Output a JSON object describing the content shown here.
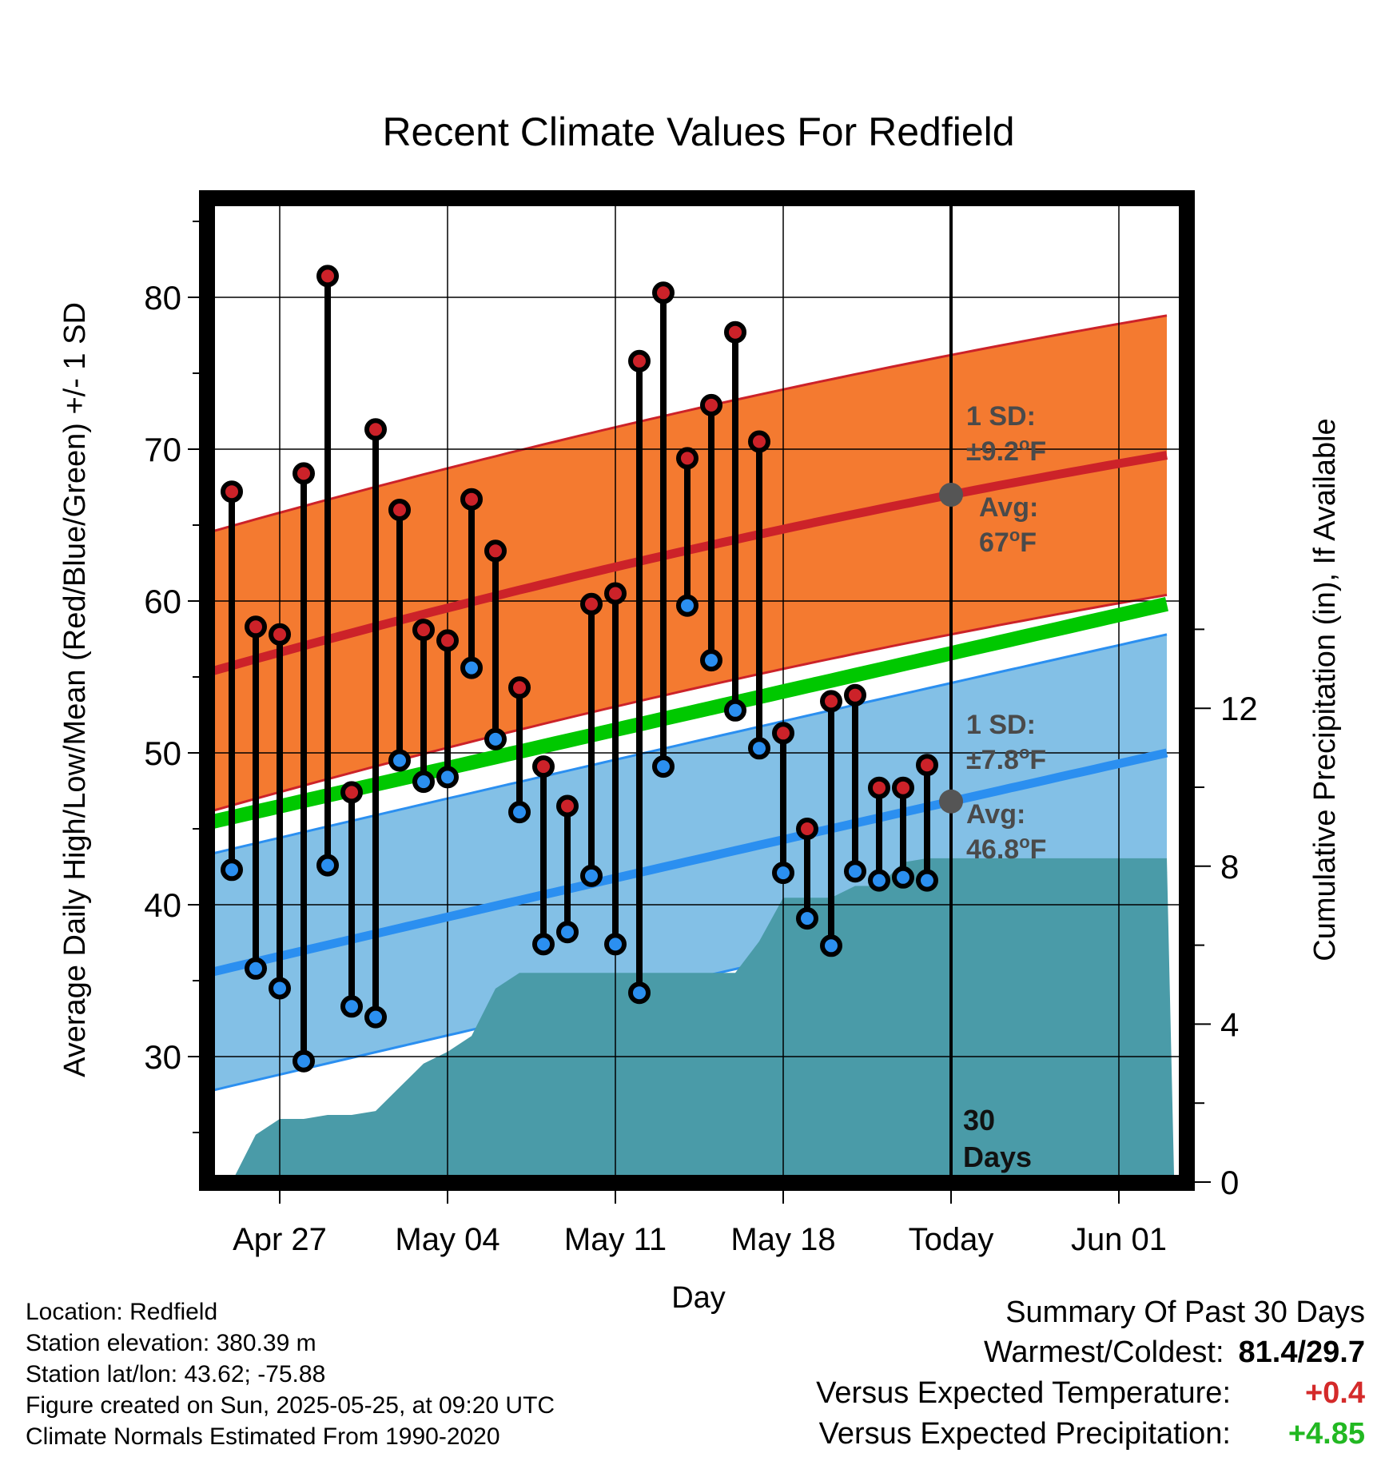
{
  "chart_data": {
    "type": "range-bar",
    "title": "Recent Climate Values For Redfield",
    "xlabel": "Day",
    "ylabel": "Average Daily High/Low/Mean (Red/Blue/Green) +/- 1 SD",
    "y2label": "Cumulative Precipitation (in), If Available",
    "ylim": [
      20,
      86
    ],
    "y2lim": [
      0,
      20
    ],
    "yticks": [
      30,
      40,
      50,
      60,
      70,
      80
    ],
    "y2ticks": [
      0,
      4,
      8,
      12
    ],
    "xticks": [
      {
        "day": 3,
        "label": "Apr 27"
      },
      {
        "day": 10,
        "label": "May 04"
      },
      {
        "day": 17,
        "label": "May 11"
      },
      {
        "day": 24,
        "label": "May 18"
      },
      {
        "day": 31,
        "label": "Today"
      },
      {
        "day": 38,
        "label": "Jun 01"
      }
    ],
    "days": [
      1,
      2,
      3,
      4,
      5,
      6,
      7,
      8,
      9,
      10,
      11,
      12,
      13,
      14,
      15,
      16,
      17,
      18,
      19,
      20,
      21,
      22,
      23,
      24,
      25,
      26,
      27,
      28,
      29,
      30
    ],
    "highs": [
      67.2,
      58.3,
      57.8,
      68.4,
      81.4,
      47.4,
      71.3,
      66.0,
      58.1,
      57.4,
      66.7,
      63.3,
      54.3,
      49.1,
      46.5,
      59.8,
      60.5,
      75.8,
      80.3,
      69.4,
      72.9,
      77.7,
      70.5,
      51.3,
      45.0,
      53.4,
      53.8,
      47.7,
      47.7,
      49.2
    ],
    "lows": [
      42.3,
      35.8,
      34.5,
      29.7,
      42.6,
      33.3,
      32.6,
      49.5,
      48.1,
      48.4,
      55.6,
      50.9,
      46.1,
      37.4,
      38.2,
      41.9,
      37.4,
      34.2,
      49.1,
      59.7,
      56.1,
      52.8,
      50.3,
      42.1,
      39.1,
      37.3,
      42.2,
      41.6,
      41.8,
      41.6
    ],
    "normal_high": {
      "start": 55.3,
      "today": 67.0,
      "end": 69.6,
      "sd": 9.2
    },
    "normal_low": {
      "start": 35.5,
      "today": 46.8,
      "end": 50.0,
      "sd": 7.8
    },
    "normal_mean": {
      "start": 45.4,
      "end": 59.8
    },
    "precip_cumulative": [
      [
        1,
        0.0
      ],
      [
        2,
        1.2
      ],
      [
        3,
        1.6
      ],
      [
        4,
        1.6
      ],
      [
        5,
        1.7
      ],
      [
        6,
        1.7
      ],
      [
        7,
        1.8
      ],
      [
        8,
        2.4
      ],
      [
        9,
        3.0
      ],
      [
        10,
        3.3
      ],
      [
        11,
        3.7
      ],
      [
        12,
        4.9
      ],
      [
        13,
        5.3
      ],
      [
        14,
        5.3
      ],
      [
        15,
        5.3
      ],
      [
        16,
        5.3
      ],
      [
        17,
        5.3
      ],
      [
        18,
        5.3
      ],
      [
        19,
        5.3
      ],
      [
        20,
        5.3
      ],
      [
        21,
        5.3
      ],
      [
        22,
        5.3
      ],
      [
        23,
        6.1
      ],
      [
        24,
        7.2
      ],
      [
        25,
        7.2
      ],
      [
        26,
        7.2
      ],
      [
        27,
        7.5
      ],
      [
        28,
        7.5
      ],
      [
        29,
        8.1
      ],
      [
        30,
        8.2
      ],
      [
        31,
        8.2
      ],
      [
        40,
        8.2
      ]
    ],
    "annotations": {
      "high_sd_label": "1 SD:",
      "high_sd_value": "±9.2",
      "high_avg_label": "Avg:",
      "high_avg_value": "67",
      "low_sd_label": "1 SD:",
      "low_sd_value": "±7.8",
      "low_avg_label": "Avg:",
      "low_avg_value": "46.8",
      "degree_mark": "o",
      "unit": "F",
      "window_count": "30",
      "window_unit": "Days"
    },
    "colors": {
      "high_band": "#f47a30",
      "high_line": "#cc2229",
      "low_band": "#83c0e6",
      "low_line": "#2b8ff0",
      "mean_line": "#00c800",
      "precip": "#4a9ba8",
      "high_dot": "#cc2229",
      "low_dot": "#2b8ff0",
      "avg_marker": "#555555"
    }
  },
  "metadata": {
    "location": "Location: Redfield",
    "elevation": "Station elevation: 380.39 m",
    "latlon": "Station lat/lon: 43.62; -75.88",
    "created": "Figure created on Sun, 2025-05-25, at 09:20 UTC",
    "normals": "Climate Normals Estimated From 1990-2020"
  },
  "summary": {
    "title": "Summary Of Past 30 Days",
    "warmest_label": "Warmest/Coldest:",
    "warmest_value": "81.4/29.7",
    "temp_label": "Versus Expected Temperature:",
    "temp_value": "+0.4",
    "temp_color": "#d42a2a",
    "precip_label": "Versus Expected Precipitation:",
    "precip_value": "+4.85",
    "precip_color": "#22b822"
  }
}
